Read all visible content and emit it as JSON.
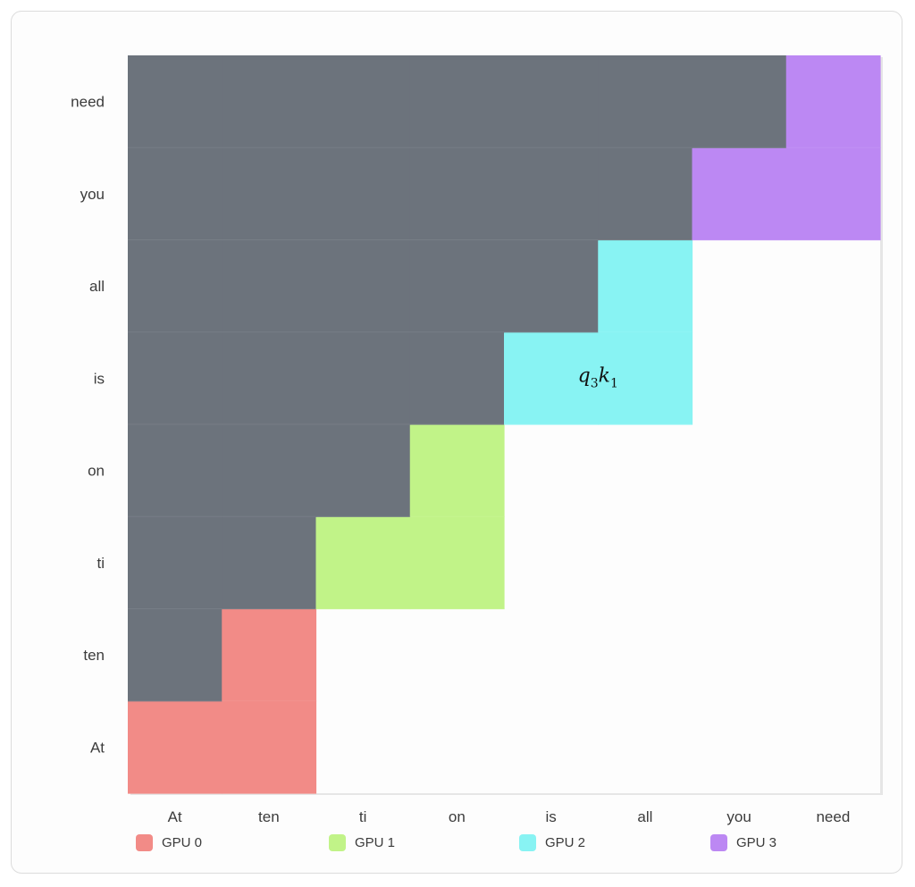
{
  "chart_data": {
    "type": "heatmap",
    "tokens": [
      "At",
      "ten",
      "ti",
      "on",
      "is",
      "all",
      "you",
      "need"
    ],
    "x_tick_labels": [
      "At",
      "ten",
      "ti",
      "on",
      "is",
      "all",
      "you",
      "need"
    ],
    "y_tick_labels_top_to_bottom": [
      "need",
      "you",
      "all",
      "is",
      "on",
      "ti",
      "ten",
      "At"
    ],
    "series": [
      {
        "name": "GPU 0",
        "color": "#f28b87"
      },
      {
        "name": "GPU 1",
        "color": "#c1f388"
      },
      {
        "name": "GPU 2",
        "color": "#88f3f3"
      },
      {
        "name": "GPU 3",
        "color": "#bc88f3"
      }
    ],
    "masked_color": "#6c737c",
    "empty_color": "#fdfdfd",
    "cells": [
      {
        "row": 0,
        "col": 0,
        "gpu": 0
      },
      {
        "row": 0,
        "col": 1,
        "gpu": 0
      },
      {
        "row": 1,
        "col": 0,
        "gpu": -1
      },
      {
        "row": 1,
        "col": 1,
        "gpu": 0
      },
      {
        "row": 2,
        "col": 0,
        "gpu": -1
      },
      {
        "row": 2,
        "col": 1,
        "gpu": -1
      },
      {
        "row": 2,
        "col": 2,
        "gpu": 1
      },
      {
        "row": 2,
        "col": 3,
        "gpu": 1
      },
      {
        "row": 3,
        "col": 0,
        "gpu": -1
      },
      {
        "row": 3,
        "col": 1,
        "gpu": -1
      },
      {
        "row": 3,
        "col": 2,
        "gpu": -1
      },
      {
        "row": 3,
        "col": 3,
        "gpu": 1
      },
      {
        "row": 4,
        "col": 0,
        "gpu": -1
      },
      {
        "row": 4,
        "col": 1,
        "gpu": -1
      },
      {
        "row": 4,
        "col": 2,
        "gpu": -1
      },
      {
        "row": 4,
        "col": 3,
        "gpu": -1
      },
      {
        "row": 4,
        "col": 4,
        "gpu": 2
      },
      {
        "row": 4,
        "col": 5,
        "gpu": 2
      },
      {
        "row": 5,
        "col": 0,
        "gpu": -1
      },
      {
        "row": 5,
        "col": 1,
        "gpu": -1
      },
      {
        "row": 5,
        "col": 2,
        "gpu": -1
      },
      {
        "row": 5,
        "col": 3,
        "gpu": -1
      },
      {
        "row": 5,
        "col": 4,
        "gpu": -1
      },
      {
        "row": 5,
        "col": 5,
        "gpu": 2
      },
      {
        "row": 6,
        "col": 0,
        "gpu": -1
      },
      {
        "row": 6,
        "col": 1,
        "gpu": -1
      },
      {
        "row": 6,
        "col": 2,
        "gpu": -1
      },
      {
        "row": 6,
        "col": 3,
        "gpu": -1
      },
      {
        "row": 6,
        "col": 4,
        "gpu": -1
      },
      {
        "row": 6,
        "col": 5,
        "gpu": -1
      },
      {
        "row": 6,
        "col": 6,
        "gpu": 3
      },
      {
        "row": 6,
        "col": 7,
        "gpu": 3
      },
      {
        "row": 7,
        "col": 0,
        "gpu": -1
      },
      {
        "row": 7,
        "col": 1,
        "gpu": -1
      },
      {
        "row": 7,
        "col": 2,
        "gpu": -1
      },
      {
        "row": 7,
        "col": 3,
        "gpu": -1
      },
      {
        "row": 7,
        "col": 4,
        "gpu": -1
      },
      {
        "row": 7,
        "col": 5,
        "gpu": -1
      },
      {
        "row": 7,
        "col": 6,
        "gpu": -1
      },
      {
        "row": 7,
        "col": 7,
        "gpu": 3
      }
    ],
    "annotation": {
      "row": 3,
      "col": 1,
      "text_q": "q",
      "sub_q": "3",
      "text_k": "k",
      "sub_k": "1",
      "placement": "centered over columns is–all"
    },
    "grid": false,
    "legend_position": "bottom"
  }
}
